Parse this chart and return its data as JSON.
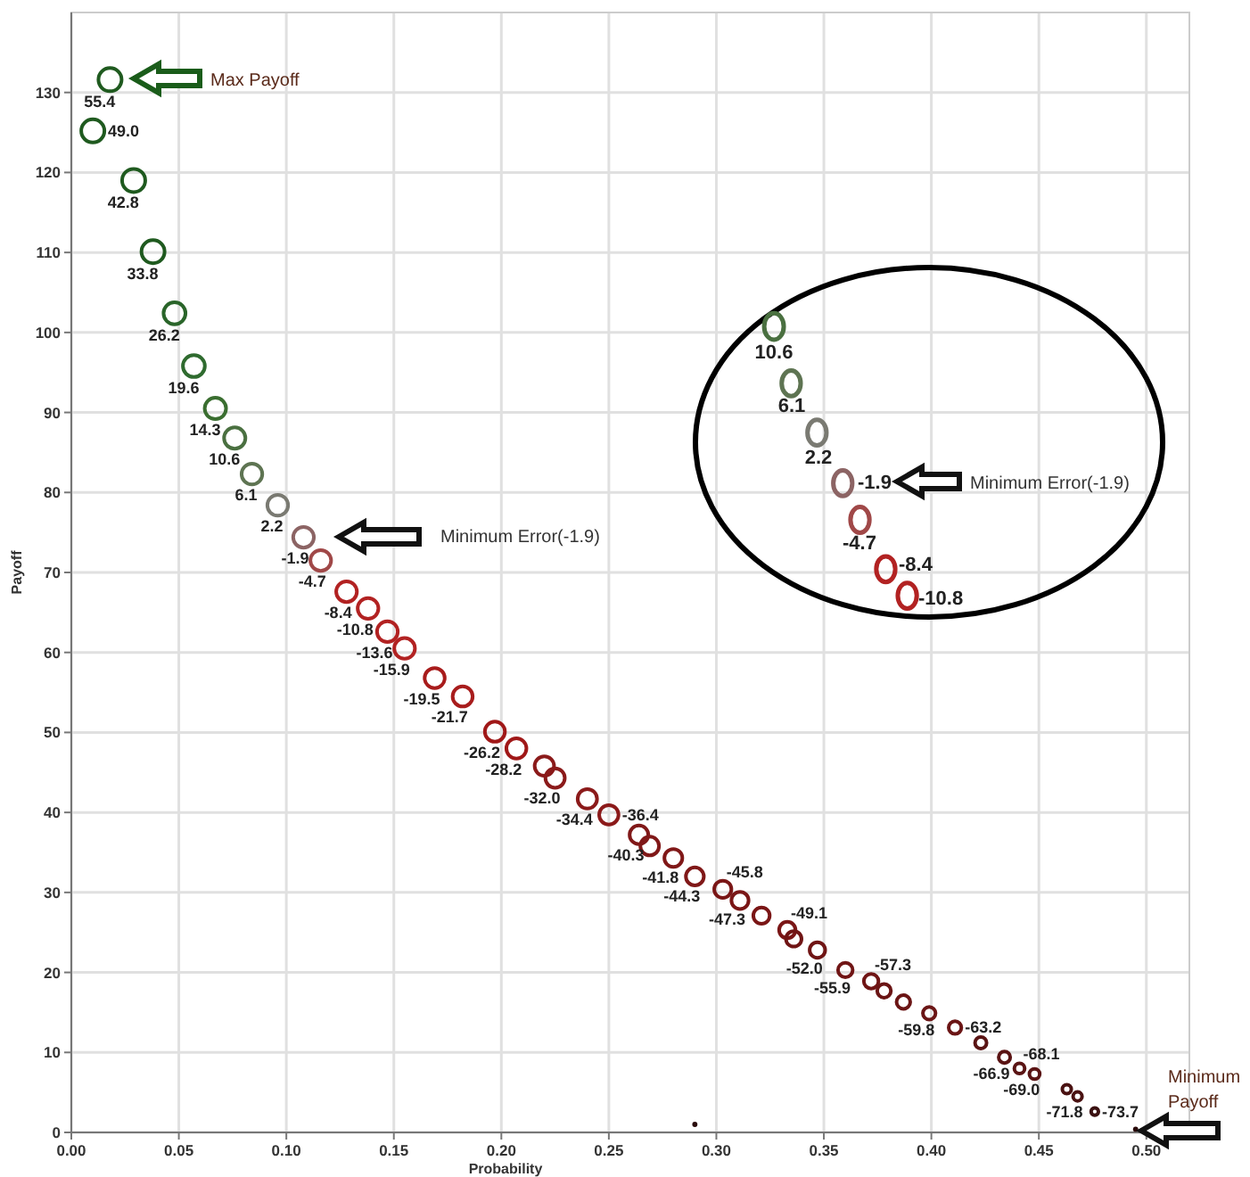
{
  "chart_data": [
    {
      "type": "bubble",
      "xlabel": "Probability",
      "ylabel": "Payoff",
      "xlim": [
        0,
        0.52
      ],
      "ylim": [
        0,
        140
      ],
      "xticks": [
        {
          "value": 0,
          "label": "0.00"
        },
        {
          "value": 0.05,
          "label": "0.05"
        },
        {
          "value": 0.1,
          "label": "0.10"
        },
        {
          "value": 0.15,
          "label": "0.15"
        },
        {
          "value": 0.2,
          "label": "0.20"
        },
        {
          "value": 0.25,
          "label": "0.25"
        },
        {
          "value": 0.3,
          "label": "0.30"
        },
        {
          "value": 0.35,
          "label": "0.35"
        },
        {
          "value": 0.4,
          "label": "0.40"
        },
        {
          "value": 0.45,
          "label": "0.45"
        },
        {
          "value": 0.5,
          "label": "0.50"
        }
      ],
      "yticks": [
        0,
        10,
        20,
        30,
        40,
        50,
        60,
        70,
        80,
        90,
        100,
        110,
        120,
        130
      ],
      "grid": true,
      "x": [
        0.018,
        0.01,
        0.029,
        0.038,
        0.048,
        0.057,
        0.067,
        0.076,
        0.084,
        0.096,
        0.108,
        0.116,
        0.128,
        0.138,
        0.147,
        0.155,
        0.169,
        0.182,
        0.197,
        0.207,
        0.22,
        0.225,
        0.24,
        0.25,
        0.264,
        0.269,
        0.28,
        0.29,
        0.303,
        0.311,
        0.321,
        0.333,
        0.336,
        0.347,
        0.36,
        0.372,
        0.378,
        0.387,
        0.399,
        0.411,
        0.423,
        0.434,
        0.441,
        0.448,
        0.463,
        0.468,
        0.476,
        0.495,
        0.29
      ],
      "values": [
        131.6,
        125.2,
        119.0,
        110.1,
        102.4,
        95.8,
        90.5,
        86.8,
        82.3,
        78.4,
        74.4,
        71.5,
        67.6,
        65.5,
        62.6,
        60.5,
        56.8,
        54.5,
        50.1,
        48.0,
        45.8,
        44.3,
        41.7,
        39.7,
        37.2,
        35.8,
        34.3,
        32.0,
        30.4,
        29.0,
        27.1,
        25.3,
        24.2,
        22.8,
        20.3,
        18.9,
        17.7,
        16.3,
        14.9,
        13.1,
        11.2,
        9.4,
        8.0,
        7.3,
        5.4,
        4.5,
        2.6,
        0.4,
        1.0
      ],
      "sizes": [
        1,
        1,
        1,
        1,
        0.9,
        0.9,
        0.85,
        0.85,
        0.8,
        0.8,
        0.8,
        0.8,
        0.8,
        0.8,
        0.8,
        0.8,
        0.75,
        0.75,
        0.75,
        0.75,
        0.7,
        0.7,
        0.7,
        0.7,
        0.65,
        0.65,
        0.6,
        0.6,
        0.55,
        0.55,
        0.5,
        0.5,
        0.45,
        0.45,
        0.4,
        0.4,
        0.35,
        0.35,
        0.3,
        0.3,
        0.25,
        0.25,
        0.2,
        0.2,
        0.15,
        0.15,
        0.1,
        0.05,
        0.05
      ],
      "colors": [
        "#1f5a1f",
        "#1f5a1f",
        "#1f5a1f",
        "#1f5a1f",
        "#2a652a",
        "#2f6b2f",
        "#3a6e30",
        "#4a7040",
        "#5e7452",
        "#7a7a72",
        "#8c6464",
        "#a04848",
        "#b22222",
        "#b22222",
        "#b22222",
        "#b22222",
        "#a81c1c",
        "#a81c1c",
        "#a01818",
        "#a01818",
        "#8b1a1a",
        "#8b1a1a",
        "#8b1a1a",
        "#8b1a1a",
        "#801818",
        "#801818",
        "#801818",
        "#801818",
        "#7a1616",
        "#7a1616",
        "#7a1616",
        "#7a1616",
        "#701515",
        "#701515",
        "#701515",
        "#701515",
        "#6b1515",
        "#6b1515",
        "#6b1515",
        "#6b1515",
        "#5a1414",
        "#5a1414",
        "#5a1414",
        "#5a1414",
        "#4a1212",
        "#4a1212",
        "#3a1010",
        "#2a0a0a",
        "#2a0a0a"
      ],
      "annotations": [
        {
          "text": "55.4",
          "x": 0.018,
          "y": 131.6
        },
        {
          "text": "49.0",
          "x": 0.01,
          "y": 125.2
        },
        {
          "text": "42.8",
          "x": 0.029,
          "y": 119.0
        },
        {
          "text": "33.8",
          "x": 0.038,
          "y": 110.1
        },
        {
          "text": "26.2",
          "x": 0.048,
          "y": 102.4
        },
        {
          "text": "19.6",
          "x": 0.057,
          "y": 95.8
        },
        {
          "text": "14.3",
          "x": 0.067,
          "y": 90.5
        },
        {
          "text": "10.6",
          "x": 0.076,
          "y": 86.8
        },
        {
          "text": "6.1",
          "x": 0.084,
          "y": 82.3
        },
        {
          "text": "2.2",
          "x": 0.096,
          "y": 78.4
        },
        {
          "text": "-1.9",
          "x": 0.108,
          "y": 74.4
        },
        {
          "text": "-4.7",
          "x": 0.116,
          "y": 71.5
        },
        {
          "text": "-8.4",
          "x": 0.128,
          "y": 67.6
        },
        {
          "text": "-10.8",
          "x": 0.138,
          "y": 65.5
        },
        {
          "text": "-13.6",
          "x": 0.147,
          "y": 62.6
        },
        {
          "text": "-15.9",
          "x": 0.155,
          "y": 60.5
        },
        {
          "text": "-19.5",
          "x": 0.169,
          "y": 56.8
        },
        {
          "text": "-21.7",
          "x": 0.182,
          "y": 54.5
        },
        {
          "text": "-26.2",
          "x": 0.197,
          "y": 50.1
        },
        {
          "text": "-28.2",
          "x": 0.207,
          "y": 48.0
        },
        {
          "text": "-32.0",
          "x": 0.225,
          "y": 44.3
        },
        {
          "text": "-34.4",
          "x": 0.24,
          "y": 41.7
        },
        {
          "text": "-36.4",
          "x": 0.25,
          "y": 39.7
        },
        {
          "text": "-40.3",
          "x": 0.264,
          "y": 37.2
        },
        {
          "text": "-41.8",
          "x": 0.28,
          "y": 34.3
        },
        {
          "text": "-44.3",
          "x": 0.29,
          "y": 32.0
        },
        {
          "text": "-45.8",
          "x": 0.303,
          "y": 30.4
        },
        {
          "text": "-47.3",
          "x": 0.311,
          "y": 29.0
        },
        {
          "text": "-49.1",
          "x": 0.333,
          "y": 25.3
        },
        {
          "text": "-52.0",
          "x": 0.347,
          "y": 22.8
        },
        {
          "text": "-55.9",
          "x": 0.36,
          "y": 20.3
        },
        {
          "text": "-57.3",
          "x": 0.372,
          "y": 18.9
        },
        {
          "text": "-59.8",
          "x": 0.399,
          "y": 14.9
        },
        {
          "text": "-63.2",
          "x": 0.411,
          "y": 13.1
        },
        {
          "text": "-66.9",
          "x": 0.434,
          "y": 9.4
        },
        {
          "text": "-68.1",
          "x": 0.441,
          "y": 8.0
        },
        {
          "text": "-69.0",
          "x": 0.448,
          "y": 7.3
        },
        {
          "text": "-71.8",
          "x": 0.468,
          "y": 4.5
        },
        {
          "text": "-73.7",
          "x": 0.476,
          "y": 2.6
        }
      ]
    },
    {
      "type": "other",
      "annotations": [
        "Max Payoff",
        "Minimum Error(-1.9)",
        "Minimum Payoff",
        "10.6",
        "6.1",
        "2.2",
        "-1.9",
        "-4.7",
        "-8.4",
        "-10.8",
        "Minimum Error(-1.9)"
      ]
    }
  ]
}
